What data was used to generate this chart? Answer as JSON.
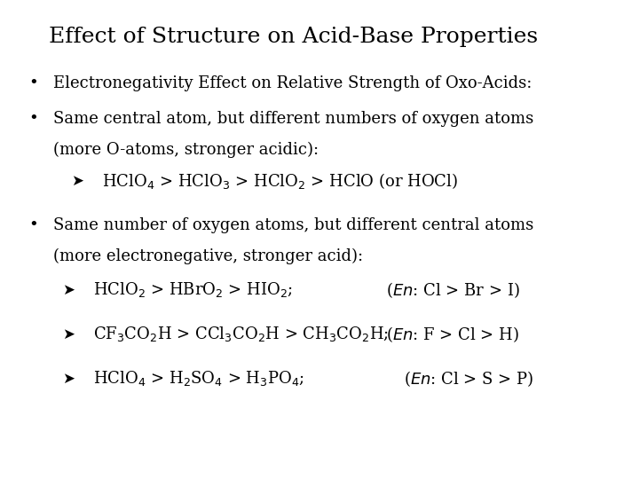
{
  "title": "Effect of Structure on Acid-Base Properties",
  "background_color": "#ffffff",
  "text_color": "#000000",
  "title_fontsize": 18,
  "body_fontsize": 13,
  "fig_width": 7.2,
  "fig_height": 5.4,
  "dpi": 100,
  "bullet1": "Electronegativity Effect on Relative Strength of Oxo-Acids:",
  "bullet2a": "Same central atom, but different numbers of oxygen atoms",
  "bullet2b": "(more O-atoms, stronger acidic):",
  "arrow1": "HClO$_4$ > HClO$_3$ > HClO$_2$ > HClO (or HOCl)",
  "bullet3a": "Same number of oxygen atoms, but different central atoms",
  "bullet3b": "(more electronegative, stronger acid):",
  "sub1_formula": "HClO$_2$ > HBrO$_2$ > HIO$_2$;",
  "sub1_en": "($\\mathit{En}$: Cl > Br > I)",
  "sub2_formula": "CF$_3$CO$_2$H > CCl$_3$CO$_2$H > CH$_3$CO$_2$H;",
  "sub2_en": "($\\mathit{En}$: F > Cl > H)",
  "sub3_formula": "HClO$_4$ > H$_2$SO$_4$ > H$_3$PO$_4$;",
  "sub3_en": "($\\mathit{En}$: Cl > S > P)"
}
